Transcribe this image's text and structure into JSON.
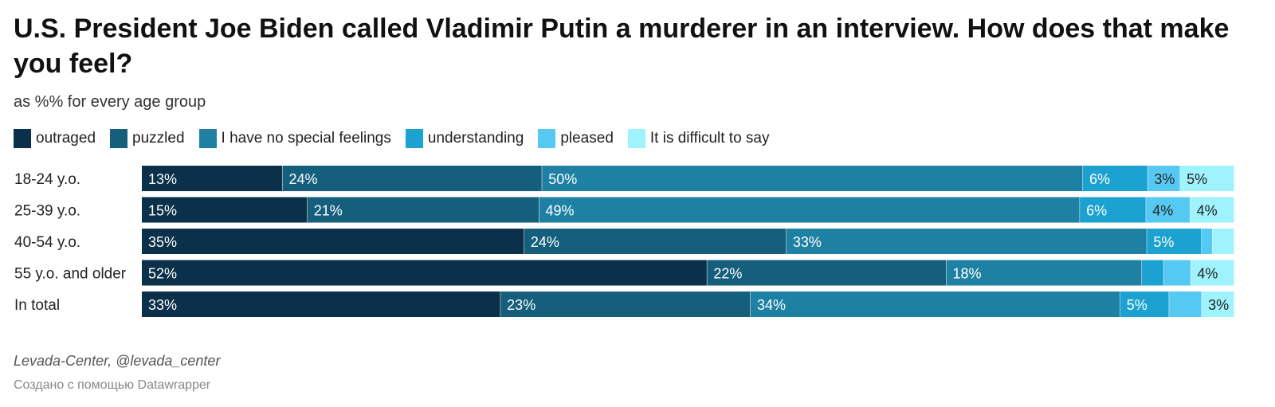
{
  "title": "U.S. President Joe Biden called Vladimir Putin a murderer in an interview. How does that make you feel?",
  "subtitle": "as %% for every age group",
  "footer": {
    "source": "Levada-Center, @levada_center",
    "credit": "Создано с помощью Datawrapper"
  },
  "chart_data": {
    "type": "bar",
    "orientation": "horizontal",
    "stacked": true,
    "normalized_to": 100,
    "categories": [
      "18-24 y.o.",
      "25-39 y.o.",
      "40-54 y.o.",
      "55 y.o. and older",
      "In total"
    ],
    "series": [
      {
        "name": "outraged",
        "color": "#0b3049",
        "values": [
          13,
          15,
          35,
          52,
          33
        ],
        "labels": [
          "13%",
          "15%",
          "35%",
          "52%",
          "33%"
        ]
      },
      {
        "name": "puzzled",
        "color": "#155f7d",
        "values": [
          24,
          21,
          24,
          22,
          23
        ],
        "labels": [
          "24%",
          "21%",
          "24%",
          "22%",
          "23%"
        ]
      },
      {
        "name": "I have no special feelings",
        "color": "#1e81a3",
        "values": [
          50,
          49,
          33,
          18,
          34
        ],
        "labels": [
          "50%",
          "49%",
          "33%",
          "18%",
          "34%"
        ]
      },
      {
        "name": "understanding",
        "color": "#1ca2d1",
        "values": [
          6,
          6,
          5,
          2,
          4.5
        ],
        "labels": [
          "6%",
          "6%",
          "5%",
          "",
          "5%"
        ]
      },
      {
        "name": "pleased",
        "color": "#56c9f3",
        "values": [
          3,
          4,
          1,
          2.5,
          3
        ],
        "labels": [
          "3%",
          "4%",
          "",
          "",
          ""
        ]
      },
      {
        "name": "It is difficult to say",
        "color": "#9ff3fc",
        "values": [
          5,
          4,
          2,
          4,
          3
        ],
        "labels": [
          "5%",
          "4%",
          "",
          "4%",
          "3%"
        ]
      }
    ],
    "label_colors": {
      "dark": "#ffffff",
      "light": "#222222"
    }
  }
}
